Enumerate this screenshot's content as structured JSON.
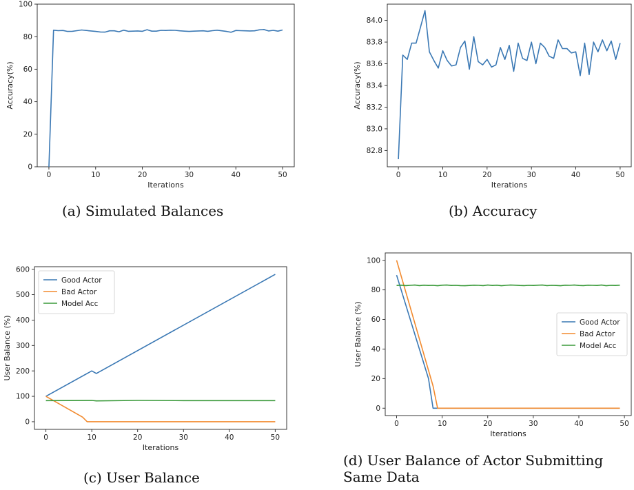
{
  "colors": {
    "blue": "#3a78b4",
    "orange": "#f28a2e",
    "green": "#3a9a3a",
    "axis": "#222222"
  },
  "captions": {
    "a": "(a) Simulated Balances",
    "b": "(b) Accuracy",
    "c": "(c) User Balance",
    "d": "(d) User Balance of Actor Submitting Same Data"
  },
  "chart_data": [
    {
      "id": "a",
      "type": "line",
      "title": "",
      "xlabel": "Iterations",
      "ylabel": "Accuracy(%)",
      "xlim": [
        -2.5,
        52.5
      ],
      "ylim": [
        0,
        100
      ],
      "xticks": [
        0,
        10,
        20,
        30,
        40,
        50
      ],
      "yticks": [
        0,
        20,
        40,
        60,
        80,
        100
      ],
      "series": [
        {
          "color": "blue",
          "x": [
            0,
            1,
            2,
            3,
            4,
            5,
            6,
            7,
            8,
            9,
            10,
            11,
            12,
            13,
            14,
            15,
            16,
            17,
            18,
            19,
            20,
            21,
            22,
            23,
            24,
            25,
            26,
            27,
            28,
            29,
            30,
            31,
            32,
            33,
            34,
            35,
            36,
            37,
            38,
            39,
            40,
            41,
            42,
            43,
            44,
            45,
            46,
            47,
            48,
            49,
            50
          ],
          "y": [
            0,
            84,
            83.7,
            83.8,
            83.2,
            83.3,
            83.7,
            84.1,
            83.8,
            83.5,
            83.2,
            82.9,
            82.8,
            83.6,
            83.6,
            83.0,
            84.0,
            83.3,
            83.4,
            83.5,
            83.3,
            84.3,
            83.4,
            83.4,
            83.9,
            83.8,
            84.0,
            83.9,
            83.6,
            83.4,
            83.2,
            83.4,
            83.5,
            83.6,
            83.3,
            83.7,
            84.0,
            83.6,
            83.2,
            82.7,
            83.8,
            83.7,
            83.6,
            83.5,
            83.6,
            84.2,
            84.4,
            83.5,
            83.9,
            83.4,
            84.1
          ]
        }
      ]
    },
    {
      "id": "b",
      "type": "line",
      "title": "",
      "xlabel": "Iterations",
      "ylabel": "Accuracy(%)",
      "xlim": [
        -2.5,
        52.5
      ],
      "ylim": [
        82.65,
        84.15
      ],
      "xticks": [
        0,
        10,
        20,
        30,
        40,
        50
      ],
      "yticks": [
        82.8,
        83.0,
        83.2,
        83.4,
        83.6,
        83.8,
        84.0
      ],
      "series": [
        {
          "color": "blue",
          "x": [
            0,
            1,
            2,
            3,
            4,
            5,
            6,
            7,
            8,
            9,
            10,
            11,
            12,
            13,
            14,
            15,
            16,
            17,
            18,
            19,
            20,
            21,
            22,
            23,
            24,
            25,
            26,
            27,
            28,
            29,
            30,
            31,
            32,
            33,
            34,
            35,
            36,
            37,
            38,
            39,
            40,
            41,
            42,
            43,
            44,
            45,
            46,
            47,
            48,
            49,
            50
          ],
          "y": [
            82.72,
            83.68,
            83.64,
            83.79,
            83.79,
            83.94,
            84.09,
            83.71,
            83.63,
            83.56,
            83.72,
            83.63,
            83.58,
            83.59,
            83.75,
            83.81,
            83.55,
            83.85,
            83.62,
            83.59,
            83.64,
            83.57,
            83.59,
            83.75,
            83.64,
            83.77,
            83.53,
            83.79,
            83.65,
            83.63,
            83.8,
            83.6,
            83.79,
            83.75,
            83.67,
            83.65,
            83.82,
            83.74,
            83.74,
            83.7,
            83.71,
            83.49,
            83.79,
            83.5,
            83.8,
            83.71,
            83.82,
            83.72,
            83.81,
            83.64,
            83.79
          ]
        }
      ]
    },
    {
      "id": "c",
      "type": "line",
      "title": "",
      "xlabel": "Iterations",
      "ylabel": "User Balance (%)",
      "xlim": [
        -2.5,
        52.5
      ],
      "ylim": [
        -30,
        610
      ],
      "xticks": [
        0,
        10,
        20,
        30,
        40,
        50
      ],
      "yticks": [
        0,
        100,
        200,
        300,
        400,
        500,
        600
      ],
      "legend": "top-left",
      "series": [
        {
          "name": "Good Actor",
          "color": "blue",
          "x": [
            0,
            10,
            11,
            50
          ],
          "y": [
            100,
            200,
            190,
            580
          ]
        },
        {
          "name": "Bad Actor",
          "color": "orange",
          "x": [
            0,
            8,
            9,
            50
          ],
          "y": [
            100,
            18,
            0,
            0
          ]
        },
        {
          "name": "Model Acc",
          "color": "green",
          "x": [
            0,
            10,
            11,
            20,
            30,
            40,
            50
          ],
          "y": [
            83,
            84,
            82,
            84,
            83,
            83,
            83
          ]
        }
      ]
    },
    {
      "id": "d",
      "type": "line",
      "title": "",
      "xlabel": "Iterations",
      "ylabel": "User Balance (%)",
      "xlim": [
        -2.5,
        51.5
      ],
      "ylim": [
        -5,
        105
      ],
      "xticks": [
        0,
        10,
        20,
        30,
        40,
        50
      ],
      "yticks": [
        0,
        20,
        40,
        60,
        80,
        100
      ],
      "legend": "center-right",
      "series": [
        {
          "name": "Good Actor",
          "color": "blue",
          "x": [
            0,
            7,
            8,
            49
          ],
          "y": [
            90,
            20,
            0,
            0
          ]
        },
        {
          "name": "Bad Actor",
          "color": "orange",
          "x": [
            0,
            8,
            9,
            49
          ],
          "y": [
            100,
            15,
            0,
            0
          ]
        },
        {
          "name": "Model Acc",
          "color": "green",
          "x": [
            0,
            1,
            2,
            3,
            4,
            5,
            6,
            7,
            8,
            9,
            10,
            11,
            12,
            13,
            14,
            15,
            16,
            17,
            18,
            19,
            20,
            21,
            22,
            23,
            24,
            25,
            26,
            27,
            28,
            29,
            30,
            31,
            32,
            33,
            34,
            35,
            36,
            37,
            38,
            39,
            40,
            41,
            42,
            43,
            44,
            45,
            46,
            47,
            48,
            49
          ],
          "y": [
            83.0,
            83.2,
            82.9,
            83.1,
            83.3,
            82.9,
            83.2,
            83.0,
            83.1,
            82.8,
            83.2,
            83.3,
            83.0,
            83.1,
            82.9,
            82.8,
            83.0,
            83.2,
            83.1,
            82.9,
            83.3,
            83.0,
            83.2,
            82.8,
            83.1,
            83.3,
            83.2,
            83.0,
            82.9,
            83.1,
            83.0,
            83.2,
            83.3,
            82.9,
            83.1,
            83.0,
            82.8,
            83.2,
            83.1,
            83.3,
            83.0,
            82.9,
            83.2,
            83.1,
            83.0,
            83.3,
            82.8,
            83.1,
            83.0,
            83.2
          ]
        }
      ]
    }
  ]
}
